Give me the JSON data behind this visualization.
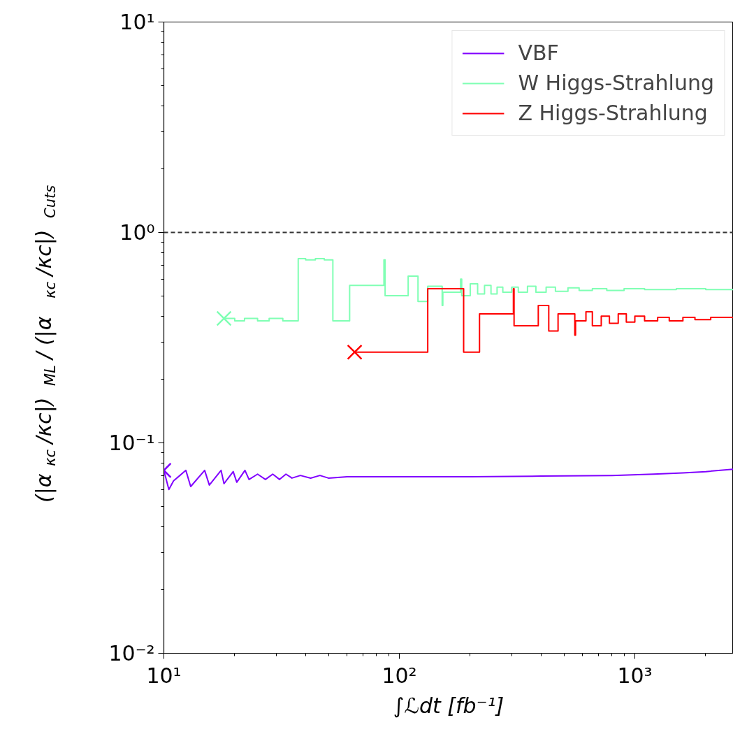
{
  "chart_data": {
    "type": "line",
    "xlabel": "∫ℒdt [fb⁻¹]",
    "ylabel": "(|α$_{κc}$/κc|)$_{ML}$ / (|α$_{κc}$/κc|)$_{Cuts}$",
    "log": "xy",
    "xlim": [
      10,
      2620
    ],
    "ylim": [
      0.01,
      10
    ],
    "xticks": [
      {
        "value": 10,
        "label": "10¹"
      },
      {
        "value": 100,
        "label": "10²"
      },
      {
        "value": 1000,
        "label": "10³"
      }
    ],
    "yticks": [
      {
        "value": 0.01,
        "label": "10⁻²"
      },
      {
        "value": 0.1,
        "label": "10⁻¹"
      },
      {
        "value": 1,
        "label": "10⁰"
      },
      {
        "value": 10,
        "label": "10¹"
      }
    ],
    "grid": false,
    "legend": "top right",
    "ref_lines": [
      {
        "axis": "y",
        "value": 1,
        "color": "#333333",
        "line_style": "dashed"
      }
    ],
    "series": [
      {
        "name": "VBF",
        "color": "#8000ff",
        "x": [
          10,
          10.5,
          11,
          12.4,
          13,
          14.9,
          15.6,
          17.5,
          18,
          19.7,
          20.4,
          22.1,
          23,
          25,
          27,
          29,
          31,
          33,
          35,
          38,
          42,
          46,
          50,
          60,
          80,
          100,
          200,
          400,
          800,
          1200,
          1600,
          2000,
          2620
        ],
        "values": [
          0.074,
          0.06,
          0.066,
          0.074,
          0.062,
          0.074,
          0.063,
          0.074,
          0.064,
          0.073,
          0.065,
          0.074,
          0.067,
          0.071,
          0.067,
          0.071,
          0.067,
          0.071,
          0.068,
          0.07,
          0.068,
          0.07,
          0.068,
          0.069,
          0.069,
          0.069,
          0.069,
          0.0695,
          0.07,
          0.071,
          0.072,
          0.073,
          0.075
        ]
      },
      {
        "name": "W Higgs-Strahlung",
        "color": "#80ffb4",
        "type": "step",
        "x": [
          18,
          20,
          22,
          25,
          28,
          32,
          37.2,
          40,
          44,
          48,
          52.2,
          61.5,
          86,
          87,
          109,
          120,
          132,
          152,
          153,
          182,
          184,
          200,
          215,
          230,
          245,
          260,
          275,
          300,
          320,
          350,
          380,
          420,
          460,
          520,
          580,
          660,
          760,
          900,
          1100,
          1500,
          2000,
          2620
        ],
        "values": [
          0.39,
          0.38,
          0.39,
          0.38,
          0.39,
          0.38,
          0.75,
          0.74,
          0.75,
          0.74,
          0.38,
          0.56,
          0.74,
          0.5,
          0.62,
          0.47,
          0.555,
          0.45,
          0.52,
          0.6,
          0.5,
          0.57,
          0.51,
          0.56,
          0.51,
          0.55,
          0.52,
          0.55,
          0.52,
          0.555,
          0.52,
          0.55,
          0.525,
          0.545,
          0.53,
          0.54,
          0.53,
          0.54,
          0.535,
          0.54,
          0.535,
          0.535
        ]
      },
      {
        "name": "Z Higgs-Strahlung",
        "color": "#ff0000",
        "type": "step",
        "x": [
          64.6,
          132,
          187.5,
          219,
          305,
          307,
          389,
          431,
          472,
          556,
          560,
          620,
          660,
          720,
          780,
          850,
          920,
          1000,
          1100,
          1250,
          1400,
          1600,
          1800,
          2100,
          2620
        ],
        "values": [
          0.27,
          0.54,
          0.27,
          0.41,
          0.54,
          0.36,
          0.45,
          0.34,
          0.41,
          0.325,
          0.38,
          0.42,
          0.36,
          0.4,
          0.37,
          0.41,
          0.375,
          0.4,
          0.38,
          0.395,
          0.38,
          0.395,
          0.385,
          0.395,
          0.39
        ]
      },
      {
        "color": "#8000ff",
        "type": "scatter",
        "marker": "cross",
        "x": [
          10
        ],
        "values": [
          0.074
        ]
      },
      {
        "color": "#80ffb4",
        "type": "scatter",
        "marker": "cross",
        "x": [
          18
        ],
        "values": [
          0.39
        ]
      },
      {
        "color": "#ff0000",
        "type": "scatter",
        "marker": "cross",
        "x": [
          64.6
        ],
        "values": [
          0.27
        ]
      }
    ]
  }
}
